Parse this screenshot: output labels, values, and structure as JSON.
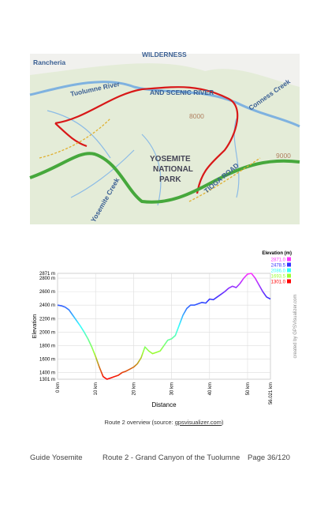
{
  "map": {
    "labels": [
      "Rancheria",
      "WILDERNESS",
      "Tuolumne River",
      "AND SCENIC RIVER",
      "Conness Creek",
      "YOSEMITE",
      "NATIONAL",
      "PARK",
      "Yosemite Creek",
      "TIOGA ROAD",
      "8000",
      "9000"
    ]
  },
  "chart_data": {
    "type": "line",
    "x_label": "Distance",
    "y_label": "Elevation",
    "credit": "created by GPSVisualizer.com",
    "x": [
      0,
      1,
      2,
      3,
      4,
      5,
      6,
      7,
      8,
      9,
      10,
      11,
      12,
      13,
      14,
      15,
      16,
      17,
      18,
      19,
      20,
      21,
      22,
      23,
      24,
      25,
      26,
      27,
      28,
      29,
      30,
      31,
      32,
      33,
      34,
      35,
      36,
      37,
      38,
      39,
      40,
      41,
      42,
      43,
      44,
      45,
      46,
      47,
      48,
      49,
      50,
      51,
      52,
      53,
      54,
      55,
      56.021
    ],
    "series": [
      {
        "values": [
          2400,
          2390,
          2370,
          2330,
          2250,
          2170,
          2090,
          2000,
          1900,
          1780,
          1640,
          1480,
          1340,
          1301,
          1320,
          1340,
          1360,
          1400,
          1420,
          1450,
          1480,
          1530,
          1620,
          1780,
          1720,
          1680,
          1700,
          1720,
          1800,
          1880,
          1900,
          1950,
          2100,
          2250,
          2350,
          2400,
          2400,
          2420,
          2440,
          2430,
          2490,
          2480,
          2520,
          2560,
          2600,
          2650,
          2680,
          2660,
          2720,
          2800,
          2860,
          2871,
          2800,
          2700,
          2600,
          2520,
          2490
        ]
      }
    ],
    "xlim": [
      0,
      56.021
    ],
    "ylim": [
      1301,
      2871
    ],
    "xticks": [
      {
        "value": 0,
        "label": "0 km"
      },
      {
        "value": 10,
        "label": "10 km"
      },
      {
        "value": 20,
        "label": "20 km"
      },
      {
        "value": 30,
        "label": "30 km"
      },
      {
        "value": 40,
        "label": "40 km"
      },
      {
        "value": 50,
        "label": "50 km"
      },
      {
        "value": 56.021,
        "label": "56.021 km"
      }
    ],
    "yticks": [
      {
        "value": 1301,
        "label": "1301 m"
      },
      {
        "value": 1400,
        "label": "1400 m"
      },
      {
        "value": 1600,
        "label": "1600 m"
      },
      {
        "value": 1800,
        "label": "1800 m"
      },
      {
        "value": 2000,
        "label": "2000 m"
      },
      {
        "value": 2200,
        "label": "2200 m"
      },
      {
        "value": 2400,
        "label": "2400 m"
      },
      {
        "value": 2600,
        "label": "2600 m"
      },
      {
        "value": 2800,
        "label": "2800 m"
      },
      {
        "value": 2871,
        "label": "2871 m"
      }
    ],
    "grid": true,
    "legend": {
      "title": "Elevation (m)",
      "entries": [
        {
          "value": 2871,
          "label": "2871.0",
          "color": "#ff33ff"
        },
        {
          "value": 2478.5,
          "label": "2478.5",
          "color": "#3333ff"
        },
        {
          "value": 2086,
          "label": "2086.0",
          "color": "#33ffff"
        },
        {
          "value": 1693.5,
          "label": "1693.5",
          "color": "#99ff33"
        },
        {
          "value": 1301,
          "label": "1301.0",
          "color": "#ff0000"
        }
      ]
    }
  },
  "caption": {
    "text": "Route 2 overview (source: ",
    "link": "gpsvisualizer.com",
    "end": ")"
  },
  "footer": {
    "left": "Guide Yosemite",
    "center": "Route 2 - Grand Canyon of the Tuolumne",
    "right": "Page 36/120"
  }
}
